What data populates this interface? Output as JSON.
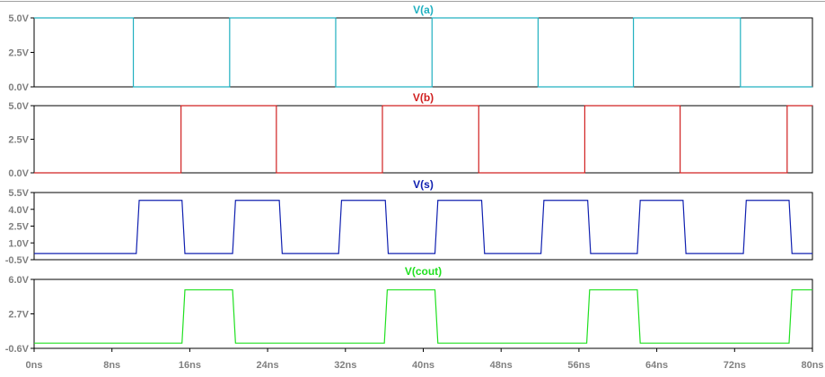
{
  "chart_data": [
    {
      "type": "line",
      "title": "V(a)",
      "color": "#20b0c0",
      "x_unit": "ns",
      "xlim": [
        0,
        80
      ],
      "ylim": [
        0,
        5
      ],
      "yticks": [
        {
          "value": 5,
          "label": "5.0V"
        },
        {
          "value": 2.5,
          "label": "2.5V"
        },
        {
          "value": 0,
          "label": "0.0V"
        }
      ],
      "series": [
        {
          "x": [
            0,
            10.2,
            10.2,
            20.1,
            20.1,
            31,
            31,
            40.9,
            40.9,
            51.8,
            51.8,
            61.6,
            61.6,
            72.6,
            72.6,
            80
          ],
          "y": [
            5,
            5,
            0,
            0,
            5,
            5,
            0,
            0,
            5,
            5,
            0,
            0,
            5,
            5,
            0,
            0
          ]
        }
      ]
    },
    {
      "type": "line",
      "title": "V(b)",
      "color": "#d02020",
      "x_unit": "ns",
      "xlim": [
        0,
        80
      ],
      "ylim": [
        0,
        5
      ],
      "yticks": [
        {
          "value": 5,
          "label": "5.0V"
        },
        {
          "value": 2.5,
          "label": "2.5V"
        },
        {
          "value": 0,
          "label": "0.0V"
        }
      ],
      "series": [
        {
          "x": [
            0,
            15.1,
            15.1,
            24.9,
            24.9,
            35.8,
            35.8,
            45.7,
            45.7,
            56.6,
            56.6,
            66.4,
            66.4,
            77.4,
            77.4,
            80
          ],
          "y": [
            0,
            0,
            5,
            5,
            0,
            0,
            5,
            5,
            0,
            0,
            5,
            5,
            0,
            0,
            5,
            5
          ]
        }
      ]
    },
    {
      "type": "line",
      "title": "V(s)",
      "color": "#1020b0",
      "x_unit": "ns",
      "xlim": [
        0,
        80
      ],
      "ylim": [
        -0.5,
        5.5
      ],
      "yticks": [
        {
          "value": 5.5,
          "label": "5.5V"
        },
        {
          "value": 4.0,
          "label": "4.0V"
        },
        {
          "value": 2.5,
          "label": "2.5V"
        },
        {
          "value": 1.0,
          "label": "1.0V"
        },
        {
          "value": -0.5,
          "label": "-0.5V"
        }
      ],
      "series": [
        {
          "x": [
            0,
            10.5,
            10.8,
            15.2,
            15.5,
            20.4,
            20.7,
            25.2,
            25.5,
            31.3,
            31.6,
            36.1,
            36.4,
            41.2,
            41.5,
            46.0,
            46.3,
            52.1,
            52.4,
            56.9,
            57.2,
            62.0,
            62.3,
            66.7,
            67.0,
            72.9,
            73.2,
            77.6,
            77.9,
            80
          ],
          "y": [
            0.05,
            0.05,
            4.8,
            4.8,
            0.05,
            0.05,
            4.8,
            4.8,
            0.05,
            0.05,
            4.8,
            4.8,
            0.05,
            0.05,
            4.8,
            4.8,
            0.05,
            0.05,
            4.8,
            4.8,
            0.05,
            0.05,
            4.8,
            4.8,
            0.05,
            0.05,
            4.8,
            4.8,
            0.05,
            0.05
          ]
        }
      ]
    },
    {
      "type": "line",
      "title": "V(cout)",
      "color": "#20e020",
      "x_unit": "ns",
      "xlim": [
        0,
        80
      ],
      "ylim": [
        -0.6,
        6.0
      ],
      "xticks": [
        "0ns",
        "8ns",
        "16ns",
        "24ns",
        "32ns",
        "40ns",
        "48ns",
        "56ns",
        "64ns",
        "72ns",
        "80ns"
      ],
      "xtick_values": [
        0,
        8,
        16,
        24,
        32,
        40,
        48,
        56,
        64,
        72,
        80
      ],
      "yticks": [
        {
          "value": 6.0,
          "label": "6.0V"
        },
        {
          "value": 2.7,
          "label": "2.7V"
        },
        {
          "value": -0.6,
          "label": "-0.6V"
        }
      ],
      "series": [
        {
          "x": [
            0,
            15.2,
            15.5,
            20.4,
            20.7,
            36.0,
            36.3,
            41.2,
            41.5,
            56.8,
            57.1,
            62.0,
            62.3,
            77.6,
            77.9,
            80
          ],
          "y": [
            -0.1,
            -0.1,
            5.0,
            5.0,
            -0.1,
            -0.1,
            5.0,
            5.0,
            -0.1,
            -0.1,
            5.0,
            5.0,
            -0.1,
            -0.1,
            5.0,
            5.0
          ]
        }
      ]
    }
  ]
}
